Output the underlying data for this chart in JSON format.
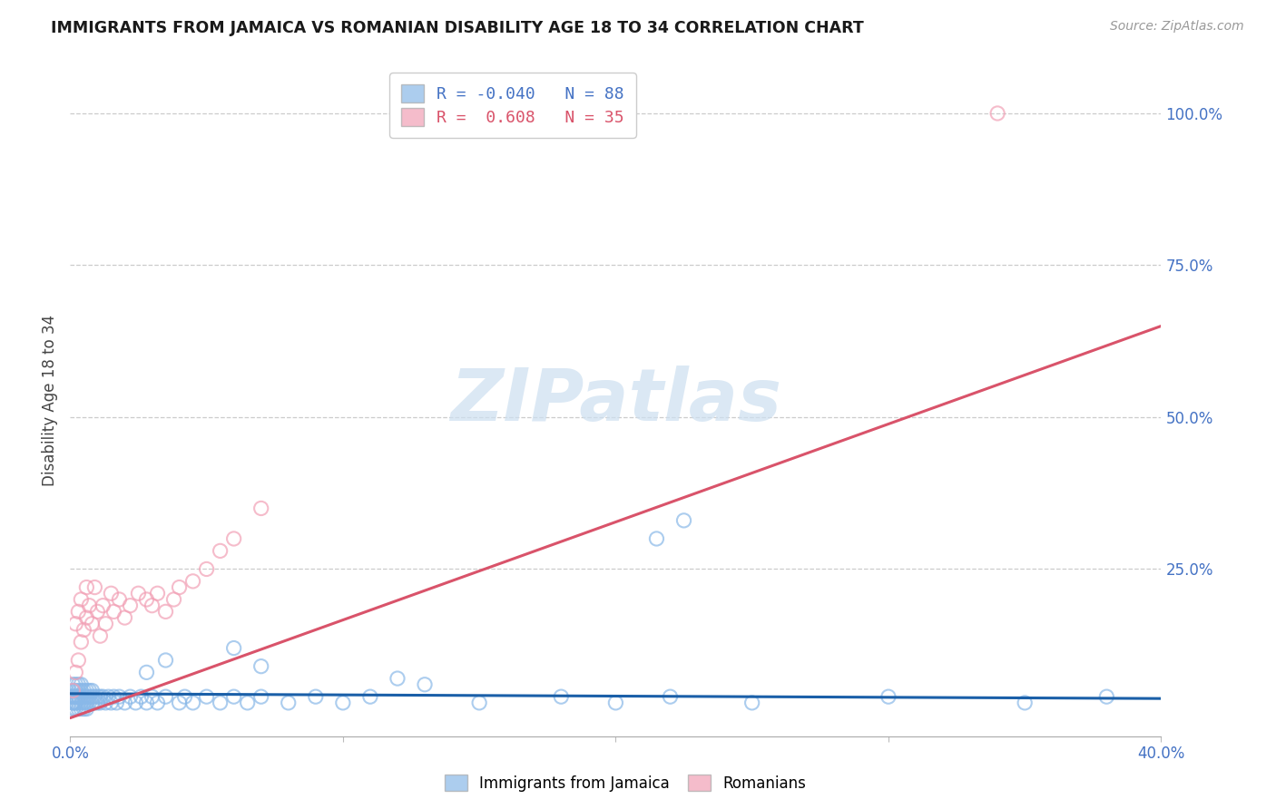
{
  "title": "IMMIGRANTS FROM JAMAICA VS ROMANIAN DISABILITY AGE 18 TO 34 CORRELATION CHART",
  "source": "Source: ZipAtlas.com",
  "ylabel": "Disability Age 18 to 34",
  "xlim": [
    0.0,
    0.4
  ],
  "ylim": [
    -0.025,
    1.08
  ],
  "color_blue": "#89b8e8",
  "color_pink": "#f2a0b5",
  "color_blue_line": "#1a5fa8",
  "color_pink_line": "#d9536a",
  "color_blue_text": "#4472c4",
  "color_axis_text": "#4472c4",
  "watermark_text": "ZIPatlas",
  "watermark_color": "#ccdff0",
  "jamaica_points": {
    "x": [
      0.0,
      0.001,
      0.001,
      0.001,
      0.001,
      0.001,
      0.001,
      0.002,
      0.002,
      0.002,
      0.002,
      0.002,
      0.002,
      0.002,
      0.003,
      0.003,
      0.003,
      0.003,
      0.003,
      0.003,
      0.004,
      0.004,
      0.004,
      0.004,
      0.004,
      0.005,
      0.005,
      0.005,
      0.005,
      0.006,
      0.006,
      0.006,
      0.006,
      0.007,
      0.007,
      0.007,
      0.008,
      0.008,
      0.008,
      0.009,
      0.009,
      0.01,
      0.01,
      0.011,
      0.011,
      0.012,
      0.013,
      0.014,
      0.015,
      0.016,
      0.017,
      0.018,
      0.02,
      0.022,
      0.024,
      0.026,
      0.028,
      0.03,
      0.032,
      0.035,
      0.04,
      0.042,
      0.045,
      0.05,
      0.055,
      0.06,
      0.065,
      0.07,
      0.08,
      0.09,
      0.1,
      0.11,
      0.15,
      0.18,
      0.2,
      0.22,
      0.25,
      0.3,
      0.35,
      0.38,
      0.215,
      0.225,
      0.028,
      0.035,
      0.06,
      0.07,
      0.12,
      0.13
    ],
    "y": [
      0.04,
      0.03,
      0.05,
      0.02,
      0.06,
      0.04,
      0.03,
      0.04,
      0.03,
      0.05,
      0.02,
      0.06,
      0.04,
      0.03,
      0.04,
      0.03,
      0.05,
      0.02,
      0.06,
      0.04,
      0.04,
      0.03,
      0.05,
      0.02,
      0.06,
      0.04,
      0.03,
      0.05,
      0.02,
      0.04,
      0.03,
      0.05,
      0.02,
      0.04,
      0.03,
      0.05,
      0.04,
      0.03,
      0.05,
      0.04,
      0.03,
      0.04,
      0.03,
      0.04,
      0.03,
      0.04,
      0.03,
      0.04,
      0.03,
      0.04,
      0.03,
      0.04,
      0.03,
      0.04,
      0.03,
      0.04,
      0.03,
      0.04,
      0.03,
      0.04,
      0.03,
      0.04,
      0.03,
      0.04,
      0.03,
      0.04,
      0.03,
      0.04,
      0.03,
      0.04,
      0.03,
      0.04,
      0.03,
      0.04,
      0.03,
      0.04,
      0.03,
      0.04,
      0.03,
      0.04,
      0.3,
      0.33,
      0.08,
      0.1,
      0.12,
      0.09,
      0.07,
      0.06
    ]
  },
  "romanian_points": {
    "x": [
      0.001,
      0.002,
      0.002,
      0.003,
      0.003,
      0.004,
      0.004,
      0.005,
      0.006,
      0.006,
      0.007,
      0.008,
      0.009,
      0.01,
      0.011,
      0.012,
      0.013,
      0.015,
      0.016,
      0.018,
      0.02,
      0.022,
      0.025,
      0.028,
      0.03,
      0.032,
      0.035,
      0.038,
      0.04,
      0.045,
      0.05,
      0.055,
      0.06,
      0.07,
      0.34
    ],
    "y": [
      0.05,
      0.08,
      0.16,
      0.1,
      0.18,
      0.13,
      0.2,
      0.15,
      0.17,
      0.22,
      0.19,
      0.16,
      0.22,
      0.18,
      0.14,
      0.19,
      0.16,
      0.21,
      0.18,
      0.2,
      0.17,
      0.19,
      0.21,
      0.2,
      0.19,
      0.21,
      0.18,
      0.2,
      0.22,
      0.23,
      0.25,
      0.28,
      0.3,
      0.35,
      1.0
    ]
  },
  "blue_line": {
    "x0": 0.0,
    "y0": 0.045,
    "x1": 0.4,
    "y1": 0.037
  },
  "pink_line": {
    "x0": 0.0,
    "y0": 0.005,
    "x1": 0.4,
    "y1": 0.65
  },
  "xtick_vals": [
    0.0,
    0.1,
    0.2,
    0.3,
    0.4
  ],
  "xtick_labels": [
    "0.0%",
    "",
    "",
    "",
    "40.0%"
  ],
  "ytick_right_vals": [
    0.25,
    0.5,
    0.75,
    1.0
  ],
  "ytick_right_labels": [
    "25.0%",
    "50.0%",
    "75.0%",
    "100.0%"
  ],
  "legend_items": [
    {
      "r": "R = -0.040",
      "n": "N = 88",
      "color": "#4472c4"
    },
    {
      "r": "R =  0.608",
      "n": "N = 35",
      "color": "#d9536a"
    }
  ],
  "bottom_legend": [
    "Immigrants from Jamaica",
    "Romanians"
  ]
}
